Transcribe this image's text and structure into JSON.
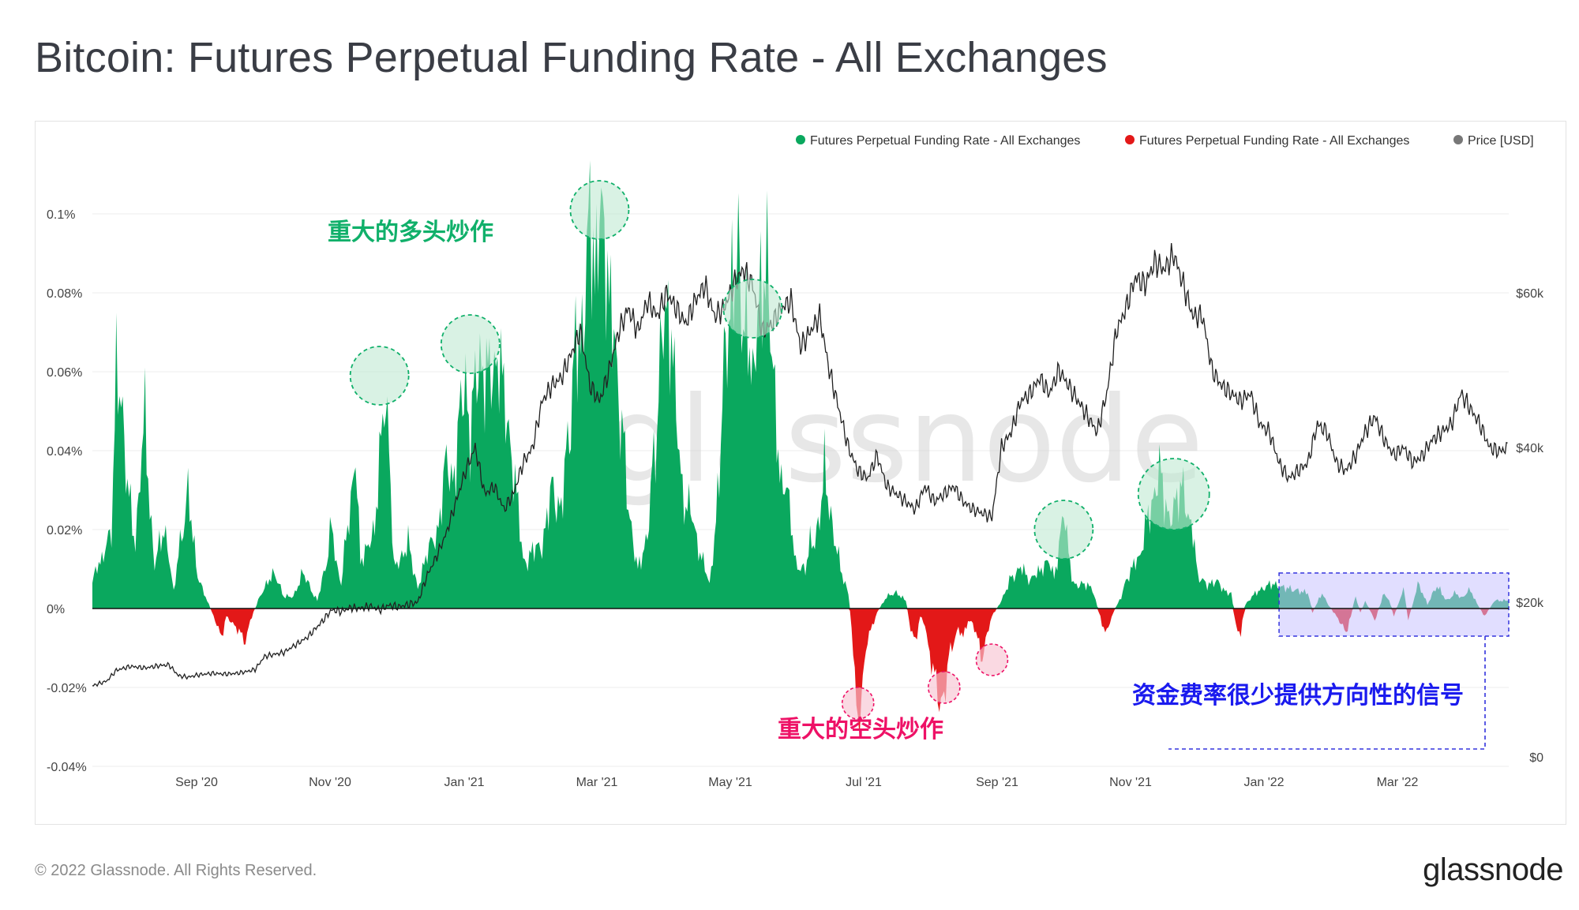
{
  "title": "Bitcoin: Futures Perpetual Funding Rate - All Exchanges",
  "footer": "© 2022 Glassnode. All Rights Reserved.",
  "brand": "glassnode",
  "watermark": "glassnode",
  "colors": {
    "positive": "#0aa85e",
    "negative": "#e31818",
    "price": "#222222",
    "highlight_fill": "#c9c2ff",
    "highlight_stroke": "#3333dd",
    "annotation_long": "#10b06a",
    "annotation_short": "#ee1166",
    "annotation_note": "#1a1aee"
  },
  "chart_data": {
    "type": "area",
    "legend": [
      {
        "label": "Futures Perpetual Funding Rate - All Exchanges",
        "color": "#0aa85e"
      },
      {
        "label": "Futures Perpetual Funding Rate - All Exchanges",
        "color": "#e31818"
      },
      {
        "label": "Price [USD]",
        "color": "#777777"
      }
    ],
    "x_ticks": [
      "Sep '20",
      "Nov '20",
      "Jan '21",
      "Mar '21",
      "May '21",
      "Jul '21",
      "Sep '21",
      "Nov '21",
      "Jan '22",
      "Mar '22"
    ],
    "y_left": {
      "range": [
        -0.04,
        0.1
      ],
      "ticks": [
        "0.1%",
        "0.08%",
        "0.06%",
        "0.04%",
        "0.02%",
        "0%",
        "-0.02%",
        "-0.04%"
      ],
      "tick_values": [
        0.1,
        0.08,
        0.06,
        0.04,
        0.02,
        0,
        -0.02,
        -0.04
      ]
    },
    "y_right": {
      "range": [
        0,
        60000
      ],
      "ticks": [
        "$60k",
        "$40k",
        "$20k",
        "$0"
      ],
      "tick_values": [
        60000,
        40000,
        20000,
        0
      ]
    },
    "x_range": [
      "2020-07-21",
      "2022-04-30"
    ],
    "funding_keypoints": [
      [
        0,
        0.007
      ],
      [
        4,
        0.02
      ],
      [
        5,
        0.062
      ],
      [
        7,
        0.04
      ],
      [
        9,
        0.015
      ],
      [
        11,
        0.045
      ],
      [
        13,
        0.01
      ],
      [
        15,
        0.02
      ],
      [
        17,
        0.004
      ],
      [
        18,
        0.014
      ],
      [
        20,
        0.028
      ],
      [
        22,
        0.008
      ],
      [
        24,
        0.002
      ],
      [
        26,
        -0.004
      ],
      [
        27,
        -0.008
      ],
      [
        28,
        -0.002
      ],
      [
        31,
        -0.006
      ],
      [
        32,
        -0.009
      ],
      [
        33,
        -0.003
      ],
      [
        35,
        0.003
      ],
      [
        36,
        0.005
      ],
      [
        38,
        0.009
      ],
      [
        40,
        0.003
      ],
      [
        42,
        0.003
      ],
      [
        44,
        0.009
      ],
      [
        46,
        0.004
      ],
      [
        47,
        0.002
      ],
      [
        49,
        0.013
      ],
      [
        50,
        0.024
      ],
      [
        51,
        0.012
      ],
      [
        52,
        0.006
      ],
      [
        53,
        0.018
      ],
      [
        55,
        0.035
      ],
      [
        56,
        0.012
      ],
      [
        59,
        0.022
      ],
      [
        61,
        0.063
      ],
      [
        63,
        0.012
      ],
      [
        66,
        0.017
      ],
      [
        68,
        0.005
      ],
      [
        70,
        0.015
      ],
      [
        72,
        0.02
      ],
      [
        74,
        0.045
      ],
      [
        75,
        0.03
      ],
      [
        78,
        0.062
      ],
      [
        79,
        0.05
      ],
      [
        82,
        0.068
      ],
      [
        85,
        0.067
      ],
      [
        88,
        0.035
      ],
      [
        90,
        0.011
      ],
      [
        92,
        0.015
      ],
      [
        94,
        0.014
      ],
      [
        96,
        0.028
      ],
      [
        98,
        0.03
      ],
      [
        100,
        0.05
      ],
      [
        102,
        0.075
      ],
      [
        104,
        0.105
      ],
      [
        105,
        0.07
      ],
      [
        106,
        0.11
      ],
      [
        108,
        0.072
      ],
      [
        110,
        0.055
      ],
      [
        112,
        0.03
      ],
      [
        114,
        0.01
      ],
      [
        116,
        0.018
      ],
      [
        118,
        0.045
      ],
      [
        120,
        0.08
      ],
      [
        122,
        0.045
      ],
      [
        124,
        0.03
      ],
      [
        126,
        0.02
      ],
      [
        128,
        0.01
      ],
      [
        129,
        0.006
      ],
      [
        131,
        0.03
      ],
      [
        133,
        0.085
      ],
      [
        136,
        0.08
      ],
      [
        138,
        0.05
      ],
      [
        139,
        0.085
      ],
      [
        141,
        0.08
      ],
      [
        143,
        0.04
      ],
      [
        145,
        0.03
      ],
      [
        147,
        0.01
      ],
      [
        149,
        0.01
      ],
      [
        151,
        0.02
      ],
      [
        153,
        0.034
      ],
      [
        155,
        0.016
      ],
      [
        157,
        0.007
      ],
      [
        158,
        0.004
      ],
      [
        159,
        -0.01
      ],
      [
        160,
        -0.028
      ],
      [
        161,
        -0.018
      ],
      [
        162,
        -0.008
      ],
      [
        164,
        -0.001
      ],
      [
        166,
        0.003
      ],
      [
        168,
        0.004
      ],
      [
        170,
        0.002
      ],
      [
        171,
        -0.005
      ],
      [
        172,
        -0.008
      ],
      [
        173,
        -0.002
      ],
      [
        174,
        -0.004
      ],
      [
        175,
        -0.012
      ],
      [
        176,
        -0.018
      ],
      [
        177,
        -0.025
      ],
      [
        178,
        -0.02
      ],
      [
        179,
        -0.012
      ],
      [
        180,
        -0.008
      ],
      [
        181,
        -0.005
      ],
      [
        182,
        -0.007
      ],
      [
        183,
        -0.003
      ],
      [
        184,
        -0.004
      ],
      [
        185,
        -0.008
      ],
      [
        186,
        -0.012
      ],
      [
        187,
        -0.006
      ],
      [
        188,
        -0.002
      ],
      [
        190,
        0.002
      ],
      [
        192,
        0.008
      ],
      [
        194,
        0.01
      ],
      [
        196,
        0.007
      ],
      [
        198,
        0.01
      ],
      [
        200,
        0.012
      ],
      [
        201,
        0.008
      ],
      [
        202,
        0.015
      ],
      [
        203,
        0.027
      ],
      [
        204,
        0.013
      ],
      [
        205,
        0.006
      ],
      [
        207,
        0.006
      ],
      [
        209,
        0.005
      ],
      [
        211,
        -0.004
      ],
      [
        212,
        -0.006
      ],
      [
        213,
        -0.002
      ],
      [
        215,
        0.003
      ],
      [
        217,
        0.01
      ],
      [
        219,
        0.013
      ],
      [
        220,
        0.02
      ],
      [
        222,
        0.03
      ],
      [
        223,
        0.034
      ],
      [
        225,
        0.022
      ],
      [
        226,
        0.03
      ],
      [
        228,
        0.028
      ],
      [
        230,
        0.018
      ],
      [
        231,
        0.008
      ],
      [
        233,
        0.006
      ],
      [
        235,
        0.007
      ],
      [
        237,
        0.004
      ],
      [
        238,
        0.004
      ],
      [
        239,
        -0.005
      ],
      [
        240,
        -0.006
      ],
      [
        241,
        0.001
      ],
      [
        243,
        0.004
      ],
      [
        246,
        0.006
      ],
      [
        250,
        0.005
      ],
      [
        254,
        0.004
      ],
      [
        255,
        -0.001
      ],
      [
        257,
        0.004
      ],
      [
        258,
        0.0015
      ],
      [
        260,
        -0.002
      ],
      [
        262,
        -0.006
      ],
      [
        263,
        -0.002
      ],
      [
        264,
        0.003
      ],
      [
        265,
        -0.001
      ],
      [
        266,
        0.002
      ],
      [
        268,
        -0.003
      ],
      [
        270,
        0.004
      ],
      [
        271,
        0.002
      ],
      [
        272,
        -0.002
      ],
      [
        274,
        0.005
      ],
      [
        275,
        -0.003
      ],
      [
        277,
        0.006
      ],
      [
        278,
        0.004
      ],
      [
        279,
        0.001
      ],
      [
        281,
        0.006
      ],
      [
        283,
        0.002
      ],
      [
        284,
        0.003
      ],
      [
        285,
        0.004
      ],
      [
        286,
        0.0025
      ],
      [
        288,
        0.005
      ],
      [
        289,
        0.002
      ],
      [
        291,
        -0.002
      ],
      [
        293,
        0.002
      ],
      [
        296,
        0.002
      ]
    ],
    "price_keypoints": [
      [
        0,
        9200
      ],
      [
        3,
        9800
      ],
      [
        5,
        11200
      ],
      [
        8,
        11700
      ],
      [
        11,
        11500
      ],
      [
        14,
        11800
      ],
      [
        16,
        11900
      ],
      [
        18,
        10500
      ],
      [
        20,
        10300
      ],
      [
        22,
        10600
      ],
      [
        25,
        10800
      ],
      [
        28,
        10700
      ],
      [
        30,
        10800
      ],
      [
        32,
        11000
      ],
      [
        34,
        11300
      ],
      [
        36,
        13000
      ],
      [
        40,
        13500
      ],
      [
        45,
        15500
      ],
      [
        48,
        17500
      ],
      [
        50,
        19000
      ],
      [
        52,
        18800
      ],
      [
        54,
        19300
      ],
      [
        56,
        19200
      ],
      [
        58,
        19500
      ],
      [
        60,
        19000
      ],
      [
        62,
        19600
      ],
      [
        64,
        19400
      ],
      [
        66,
        19700
      ],
      [
        68,
        20000
      ],
      [
        70,
        23500
      ],
      [
        72,
        26000
      ],
      [
        74,
        29000
      ],
      [
        76,
        33000
      ],
      [
        78,
        37000
      ],
      [
        80,
        40000
      ],
      [
        82,
        34000
      ],
      [
        84,
        35000
      ],
      [
        86,
        32000
      ],
      [
        88,
        34000
      ],
      [
        90,
        38000
      ],
      [
        92,
        40000
      ],
      [
        94,
        46000
      ],
      [
        96,
        48000
      ],
      [
        98,
        49000
      ],
      [
        100,
        52000
      ],
      [
        102,
        55000
      ],
      [
        104,
        48000
      ],
      [
        106,
        46000
      ],
      [
        108,
        50000
      ],
      [
        110,
        55000
      ],
      [
        112,
        58000
      ],
      [
        114,
        55000
      ],
      [
        116,
        59000
      ],
      [
        118,
        57000
      ],
      [
        120,
        60000
      ],
      [
        122,
        58000
      ],
      [
        124,
        56000
      ],
      [
        126,
        59000
      ],
      [
        128,
        61000
      ],
      [
        130,
        57000
      ],
      [
        132,
        58000
      ],
      [
        134,
        61000
      ],
      [
        136,
        63000
      ],
      [
        138,
        61000
      ],
      [
        140,
        55000
      ],
      [
        142,
        56000
      ],
      [
        144,
        58000
      ],
      [
        146,
        59000
      ],
      [
        148,
        53000
      ],
      [
        150,
        55000
      ],
      [
        152,
        57000
      ],
      [
        154,
        50000
      ],
      [
        156,
        45000
      ],
      [
        158,
        40000
      ],
      [
        160,
        37000
      ],
      [
        162,
        36000
      ],
      [
        164,
        39000
      ],
      [
        166,
        35000
      ],
      [
        168,
        34000
      ],
      [
        170,
        33000
      ],
      [
        172,
        32000
      ],
      [
        174,
        35000
      ],
      [
        176,
        33000
      ],
      [
        178,
        34000
      ],
      [
        180,
        35000
      ],
      [
        182,
        33000
      ],
      [
        184,
        32000
      ],
      [
        186,
        31500
      ],
      [
        188,
        31000
      ],
      [
        190,
        40000
      ],
      [
        192,
        42000
      ],
      [
        194,
        46000
      ],
      [
        196,
        47000
      ],
      [
        198,
        49000
      ],
      [
        200,
        47000
      ],
      [
        202,
        50000
      ],
      [
        204,
        48000
      ],
      [
        206,
        46000
      ],
      [
        208,
        44000
      ],
      [
        210,
        42000
      ],
      [
        212,
        47000
      ],
      [
        214,
        55000
      ],
      [
        216,
        58000
      ],
      [
        218,
        62000
      ],
      [
        220,
        61000
      ],
      [
        222,
        64000
      ],
      [
        224,
        63000
      ],
      [
        226,
        65000
      ],
      [
        228,
        61000
      ],
      [
        230,
        57000
      ],
      [
        232,
        57000
      ],
      [
        234,
        50000
      ],
      [
        236,
        48000
      ],
      [
        238,
        47000
      ],
      [
        240,
        46000
      ],
      [
        242,
        47000
      ],
      [
        244,
        43000
      ],
      [
        246,
        42000
      ],
      [
        248,
        38000
      ],
      [
        250,
        36000
      ],
      [
        252,
        37000
      ],
      [
        254,
        38000
      ],
      [
        256,
        43000
      ],
      [
        258,
        42000
      ],
      [
        260,
        38000
      ],
      [
        262,
        37000
      ],
      [
        264,
        39000
      ],
      [
        266,
        42000
      ],
      [
        268,
        44000
      ],
      [
        270,
        41000
      ],
      [
        272,
        39000
      ],
      [
        274,
        40000
      ],
      [
        276,
        38000
      ],
      [
        278,
        39000
      ],
      [
        280,
        41000
      ],
      [
        282,
        42000
      ],
      [
        284,
        43000
      ],
      [
        286,
        47000
      ],
      [
        288,
        45000
      ],
      [
        290,
        43000
      ],
      [
        292,
        40000
      ],
      [
        294,
        39500
      ],
      [
        296,
        40000
      ]
    ],
    "highlight_range": {
      "x": [
        248,
        296
      ],
      "y": [
        -0.007,
        0.009
      ]
    },
    "annotations": {
      "long_label": "重大的多头炒作",
      "short_label": "重大的空头炒作",
      "note_label": "资金费率很少提供方向性的信号"
    },
    "long_circles": [
      [
        60,
        0.059
      ],
      [
        79,
        0.067
      ],
      [
        106,
        0.101
      ],
      [
        138,
        0.076
      ],
      [
        203,
        0.02
      ],
      [
        226,
        0.029
      ]
    ],
    "short_circles": [
      [
        160,
        -0.024
      ],
      [
        178,
        -0.02
      ],
      [
        188,
        -0.013
      ]
    ]
  }
}
